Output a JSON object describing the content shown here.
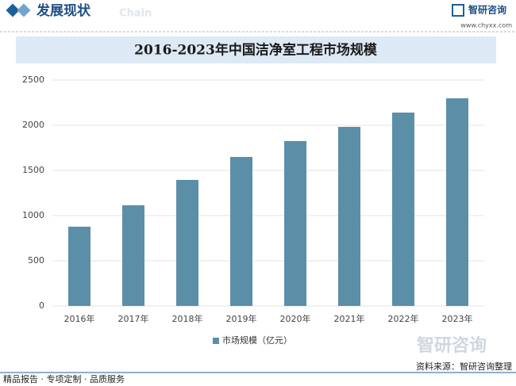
{
  "header": {
    "title": "发展现状",
    "subtitle": "Chain",
    "brand": "智研咨询",
    "url": "www.chyxx.com"
  },
  "chart_data": {
    "type": "bar",
    "title": "2016-2023年中国洁净室工程市场规模",
    "categories": [
      "2016年",
      "2017年",
      "2018年",
      "2019年",
      "2020年",
      "2021年",
      "2022年",
      "2023年"
    ],
    "series": [
      {
        "name": "市场规模（亿元）",
        "color": "#5b8fa8",
        "values": [
          877,
          1114,
          1395,
          1649,
          1825,
          1982,
          2140,
          2298
        ]
      }
    ],
    "ylim": [
      0,
      2500
    ],
    "yticks": [
      0,
      500,
      1000,
      1500,
      2000,
      2500
    ],
    "grid": true,
    "legend": "bottom"
  },
  "footer": {
    "logo": "智研咨询",
    "source": "资料来源：智研咨询整理",
    "slogan": "精品报告 · 专项定制 · 品质服务"
  }
}
